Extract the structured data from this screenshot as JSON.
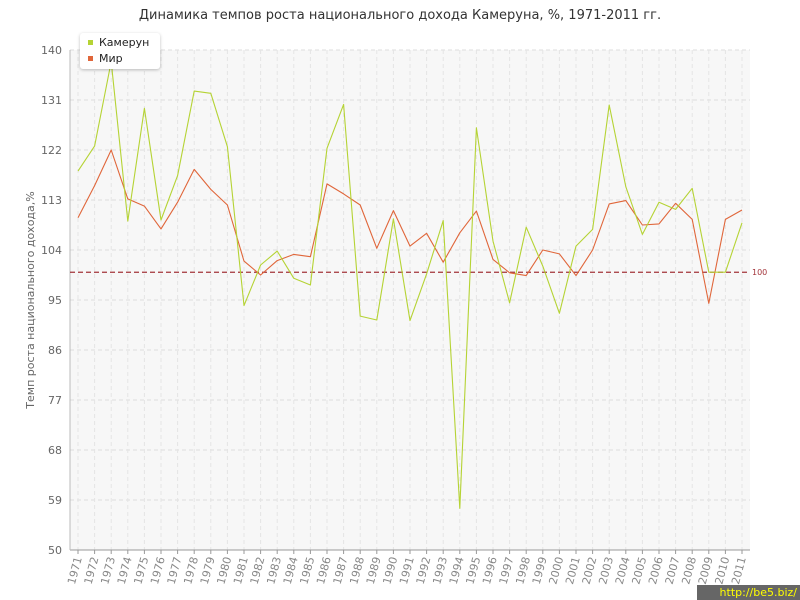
{
  "chart_data": {
    "type": "line",
    "title": "Динамика темпов роста национального дохода Камеруна, %, 1971-2011 гг.",
    "ylabel": "Темп роста национального дохода,%",
    "xlabel": "",
    "ylim": [
      50,
      140
    ],
    "yticks": [
      50,
      59,
      68,
      77,
      86,
      95,
      104,
      113,
      122,
      131,
      140
    ],
    "categories": [
      "1971",
      "1972",
      "1973",
      "1974",
      "1975",
      "1976",
      "1977",
      "1978",
      "1979",
      "1980",
      "1981",
      "1982",
      "1983",
      "1984",
      "1985",
      "1986",
      "1987",
      "1988",
      "1989",
      "1990",
      "1991",
      "1992",
      "1993",
      "1994",
      "1995",
      "1996",
      "1997",
      "1998",
      "1999",
      "2000",
      "2001",
      "2002",
      "2003",
      "2004",
      "2005",
      "2006",
      "2007",
      "2008",
      "2009",
      "2010",
      "2011"
    ],
    "series": [
      {
        "name": "Камерун",
        "color": "#b5d334",
        "values": [
          118.2,
          122.7,
          137.9,
          109.2,
          129.5,
          109.4,
          117.4,
          132.6,
          132.2,
          122.6,
          94.0,
          101.3,
          103.8,
          98.9,
          97.7,
          122.3,
          130.2,
          92.1,
          91.4,
          109.6,
          91.3,
          99.7,
          109.3,
          57.5,
          126.0,
          105.6,
          94.5,
          108.1,
          101.1,
          92.6,
          104.7,
          107.7,
          130.1,
          115.4,
          106.8,
          112.6,
          111.3,
          115.1,
          100.0,
          100.0,
          108.9
        ]
      },
      {
        "name": "Мир",
        "color": "#e0663a",
        "values": [
          109.8,
          115.6,
          122.0,
          113.2,
          111.9,
          107.8,
          112.6,
          118.5,
          114.9,
          112.1,
          102.0,
          99.5,
          102.1,
          103.2,
          102.8,
          115.9,
          114.1,
          112.1,
          104.3,
          111.1,
          104.7,
          107.0,
          101.8,
          107.1,
          111.0,
          102.3,
          99.9,
          99.4,
          104.0,
          103.3,
          99.4,
          104.0,
          112.3,
          112.9,
          108.5,
          108.7,
          112.4,
          109.5,
          94.4,
          109.5,
          111.2
        ]
      }
    ],
    "reference_line": {
      "value": 100,
      "label": "100",
      "color": "#a3343a"
    },
    "grid": true,
    "legend_position": "top-left"
  },
  "watermark": "http://be5.biz/"
}
